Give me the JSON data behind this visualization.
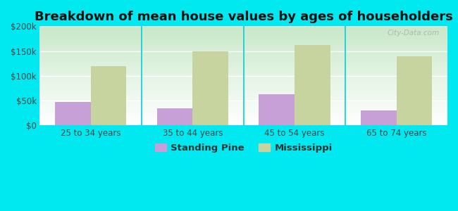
{
  "title": "Breakdown of mean house values by ages of householders",
  "categories": [
    "25 to 34 years",
    "35 to 44 years",
    "45 to 54 years",
    "65 to 74 years"
  ],
  "standing_pine": [
    47000,
    35000,
    63000,
    30000
  ],
  "mississippi": [
    120000,
    150000,
    162000,
    140000
  ],
  "standing_pine_color": "#c8a0d8",
  "mississippi_color": "#c8d4a0",
  "background_color": "#00e8f0",
  "plot_bg_topleft": "#c8e8c0",
  "plot_bg_topright": "#e8f4e8",
  "plot_bg_bottom": "#ffffff",
  "ylim": [
    0,
    200000
  ],
  "yticks": [
    0,
    50000,
    100000,
    150000,
    200000
  ],
  "ytick_labels": [
    "$0",
    "$50k",
    "$100k",
    "$150k",
    "$200k"
  ],
  "bar_width": 0.35,
  "title_fontsize": 13,
  "tick_fontsize": 8.5,
  "legend_fontsize": 9.5,
  "watermark": "City-Data.com"
}
